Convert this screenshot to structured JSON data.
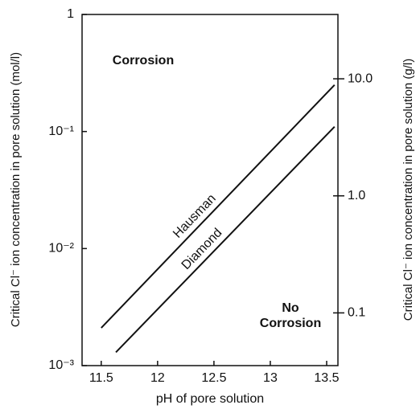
{
  "chart_data": {
    "type": "line",
    "xlabel": "pH of pore solution",
    "ylabel": "Critical Cl⁻ ion concentration in pore solution (mol/l)",
    "y2label": "Critical Cl⁻ ion concentration in pore solution (g/l)",
    "annotations": [
      "Corrosion",
      "No Corrosion"
    ],
    "xlim": [
      11.33,
      13.6
    ],
    "xticks": [
      11.5,
      12,
      12.5,
      13,
      13.5
    ],
    "ylim": [
      0.001,
      1
    ],
    "yticks": [
      1,
      {
        "value": 0.1,
        "label": "10⁻¹"
      },
      {
        "value": 0.01,
        "label": "10⁻²"
      },
      {
        "value": 0.001,
        "label": "10⁻³"
      }
    ],
    "y2lim": [
      0.03545,
      35.45
    ],
    "y2ticks": [
      {
        "value": 10,
        "label": "10.0"
      },
      {
        "value": 1,
        "label": "1.0"
      },
      {
        "value": 0.1,
        "label": "0.1"
      }
    ],
    "log_y": true,
    "series": [
      {
        "name": "Hausman",
        "color": "#111111",
        "x": [
          11.5,
          13.57
        ],
        "values": [
          0.0021,
          0.25
        ]
      },
      {
        "name": "Diamond",
        "color": "#111111",
        "x": [
          11.63,
          13.57
        ],
        "values": [
          0.0013,
          0.11
        ]
      }
    ]
  }
}
